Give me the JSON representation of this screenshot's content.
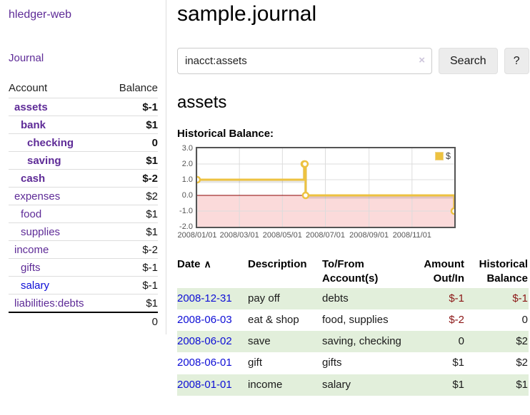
{
  "colors": {
    "link_purple": "#5e2b97",
    "link_blue": "#0d0dd6",
    "negative_strong": "#8c0606",
    "negative_muted": "#b36b6b",
    "negative": "#8b1515",
    "row_green": "#e2efdb",
    "chart_line": "#edc240",
    "chart_zero_line": "#8b0000",
    "chart_negative_fill": "#fbdada",
    "grid_line": "#dcdcdc",
    "chart_border": "#545454"
  },
  "sidebar": {
    "brand": "hledger-web",
    "journal_link": "Journal",
    "headers": {
      "account": "Account",
      "balance": "Balance"
    },
    "rows": [
      {
        "account": "assets",
        "balance": "$-1",
        "indent": 0,
        "bold": true,
        "balance_style": "neg-strong",
        "link": "purple"
      },
      {
        "account": "bank",
        "balance": "$1",
        "indent": 1,
        "bold": true,
        "balance_style": "",
        "link": "purple"
      },
      {
        "account": "checking",
        "balance": "0",
        "indent": 2,
        "bold": true,
        "balance_style": "",
        "link": "purple"
      },
      {
        "account": "saving",
        "balance": "$1",
        "indent": 2,
        "bold": true,
        "balance_style": "",
        "link": "purple"
      },
      {
        "account": "cash",
        "balance": "$-2",
        "indent": 1,
        "bold": true,
        "balance_style": "neg-strong",
        "link": "purple"
      },
      {
        "account": "expenses",
        "balance": "$2",
        "indent": 0,
        "bold": false,
        "balance_style": "",
        "link": "purple"
      },
      {
        "account": "food",
        "balance": "$1",
        "indent": 1,
        "bold": false,
        "balance_style": "",
        "link": "purple"
      },
      {
        "account": "supplies",
        "balance": "$1",
        "indent": 1,
        "bold": false,
        "balance_style": "",
        "link": "purple"
      },
      {
        "account": "income",
        "balance": "$-2",
        "indent": 0,
        "bold": false,
        "balance_style": "neg-muted",
        "link": "purple"
      },
      {
        "account": "gifts",
        "balance": "$-1",
        "indent": 1,
        "bold": false,
        "balance_style": "neg-muted",
        "link": "purple"
      },
      {
        "account": "salary",
        "balance": "$-1",
        "indent": 1,
        "bold": false,
        "balance_style": "neg-muted",
        "link": "blue"
      },
      {
        "account": "liabilities:debts",
        "balance": "$1",
        "indent": 0,
        "bold": false,
        "balance_style": "",
        "link": "purple"
      }
    ],
    "total": "0"
  },
  "main": {
    "title": "sample.journal",
    "search": {
      "value": "inacct:assets",
      "clear_icon": "×",
      "search_button": "Search",
      "help_button": "?"
    },
    "account_heading": "assets",
    "chart_label": "Historical Balance:"
  },
  "chart_data": {
    "type": "line",
    "step": true,
    "title": "Historical Balance",
    "legend_label": "$",
    "legend_position": "top-right",
    "grid": true,
    "x_range": [
      "2008-01-01",
      "2008-12-31"
    ],
    "y_range": [
      -2,
      3
    ],
    "x_ticks": [
      {
        "date": "2008-01-01",
        "label": "2008/01/01"
      },
      {
        "date": "2008-03-01",
        "label": "2008/03/01"
      },
      {
        "date": "2008-05-01",
        "label": "2008/05/01"
      },
      {
        "date": "2008-07-01",
        "label": "2008/07/01"
      },
      {
        "date": "2008-09-01",
        "label": "2008/09/01"
      },
      {
        "date": "2008-11-01",
        "label": "2008/11/01"
      }
    ],
    "y_ticks": [
      {
        "value": 3,
        "label": "3.0"
      },
      {
        "value": 2,
        "label": "2.0"
      },
      {
        "value": 1,
        "label": "1.0"
      },
      {
        "value": 0,
        "label": "0.0"
      },
      {
        "value": -1,
        "label": "-1.0"
      },
      {
        "value": -2,
        "label": "-2.0"
      }
    ],
    "series": [
      {
        "name": "$",
        "color": "#edc240",
        "points": [
          [
            "2008-01-01",
            1
          ],
          [
            "2008-06-01",
            2
          ],
          [
            "2008-06-02",
            2
          ],
          [
            "2008-06-03",
            0
          ],
          [
            "2008-12-31",
            -1
          ]
        ]
      }
    ]
  },
  "register": {
    "headers": {
      "date": "Date",
      "sort_caret": "∧",
      "description": "Description",
      "accounts_line1": "To/From",
      "accounts_line2": "Account(s)",
      "amount_line1": "Amount",
      "amount_line2": "Out/In",
      "balance_line1": "Historical",
      "balance_line2": "Balance"
    },
    "rows": [
      {
        "date": "2008-12-31",
        "description": "pay off",
        "accounts": "debts",
        "amount": "$-1",
        "amount_negative": true,
        "balance": "$-1",
        "balance_negative": true
      },
      {
        "date": "2008-06-03",
        "description": "eat & shop",
        "accounts": "food, supplies",
        "amount": "$-2",
        "amount_negative": true,
        "balance": "0",
        "balance_negative": false
      },
      {
        "date": "2008-06-02",
        "description": "save",
        "accounts": "saving, checking",
        "amount": "0",
        "amount_negative": false,
        "balance": "$2",
        "balance_negative": false
      },
      {
        "date": "2008-06-01",
        "description": "gift",
        "accounts": "gifts",
        "amount": "$1",
        "amount_negative": false,
        "balance": "$2",
        "balance_negative": false
      },
      {
        "date": "2008-01-01",
        "description": "income",
        "accounts": "salary",
        "amount": "$1",
        "amount_negative": false,
        "balance": "$1",
        "balance_negative": false
      }
    ]
  }
}
